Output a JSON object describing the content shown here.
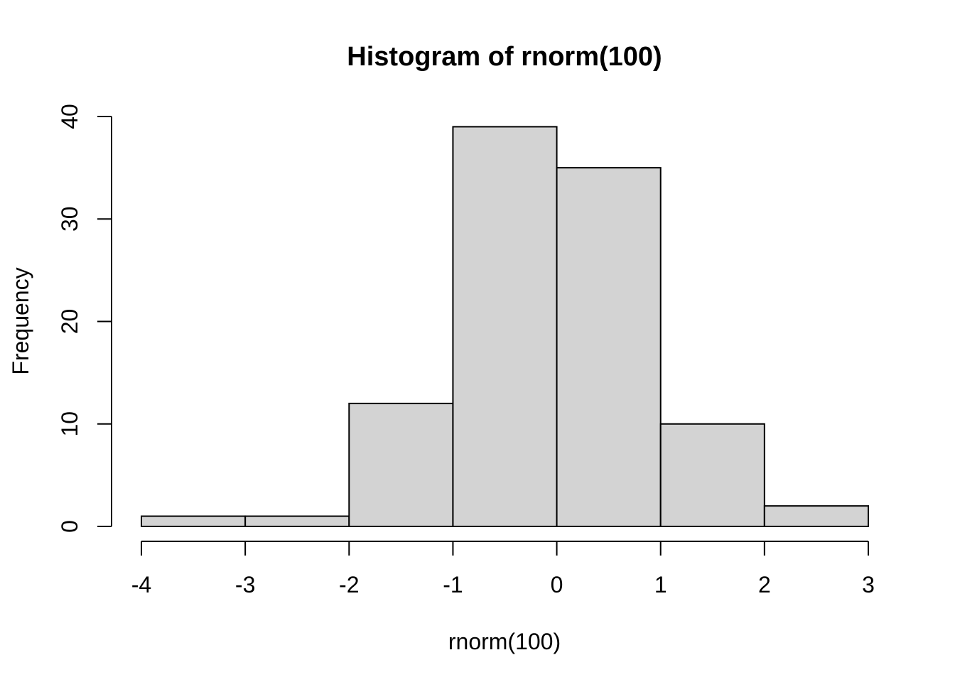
{
  "chart_data": {
    "type": "bar",
    "subtype": "histogram",
    "title": "Histogram of rnorm(100)",
    "xlabel": "rnorm(100)",
    "ylabel": "Frequency",
    "breaks": [
      -4,
      -3,
      -2,
      -1,
      0,
      1,
      2,
      3
    ],
    "counts": [
      1,
      1,
      12,
      39,
      35,
      10,
      2
    ],
    "total_observations": 100,
    "xticks": [
      -4,
      -3,
      -2,
      -1,
      0,
      1,
      2,
      3
    ],
    "yticks": [
      0,
      10,
      20,
      30,
      40
    ],
    "xtick_labels": [
      "-4",
      "-3",
      "-2",
      "-1",
      "0",
      "1",
      "2",
      "3"
    ],
    "ytick_labels": [
      "0",
      "10",
      "20",
      "30",
      "40"
    ],
    "xlim": [
      -4,
      3
    ],
    "ylim": [
      0,
      40
    ],
    "grid": false,
    "legend": false,
    "bar_fill": "#d3d3d3",
    "bar_stroke": "#000000",
    "axis_color": "#000000",
    "background": "#ffffff"
  }
}
